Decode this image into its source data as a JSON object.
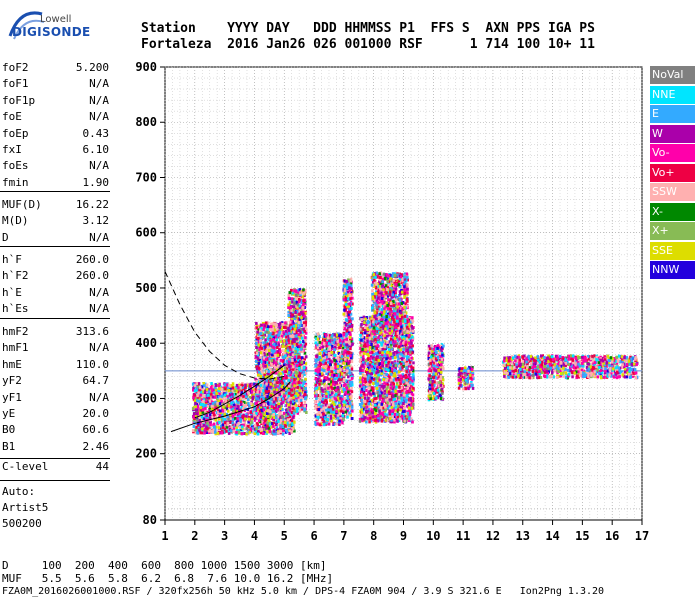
{
  "logo": {
    "line1": "Lowell",
    "line2": "DIGISONDE"
  },
  "header": {
    "line1": "Station    YYYY DAY   DDD HHMMSS P1  FFS S  AXN PPS IGA PS",
    "line2": "Fortaleza  2016 Jan26 026 001000 RSF      1 714 100 10+ 11"
  },
  "params_group1": [
    {
      "key": "foF2",
      "value": "5.200"
    },
    {
      "key": "foF1",
      "value": "N/A"
    },
    {
      "key": "foF1p",
      "value": "N/A"
    },
    {
      "key": "foE",
      "value": "N/A"
    },
    {
      "key": "foEp",
      "value": "0.43"
    },
    {
      "key": "fxI",
      "value": "6.10"
    },
    {
      "key": "foEs",
      "value": "N/A"
    },
    {
      "key": "fmin",
      "value": "1.90"
    }
  ],
  "params_group2": [
    {
      "key": "MUF(D)",
      "value": "16.22"
    },
    {
      "key": "M(D)",
      "value": "3.12"
    },
    {
      "key": "D",
      "value": "N/A"
    }
  ],
  "params_group3": [
    {
      "key": "h`F",
      "value": "260.0"
    },
    {
      "key": "h`F2",
      "value": "260.0"
    },
    {
      "key": "h`E",
      "value": "N/A"
    },
    {
      "key": "h`Es",
      "value": "N/A"
    }
  ],
  "params_group4": [
    {
      "key": "hmF2",
      "value": "313.6"
    },
    {
      "key": "hmF1",
      "value": "N/A"
    },
    {
      "key": "hmE",
      "value": "110.0"
    },
    {
      "key": "yF2",
      "value": "64.7"
    },
    {
      "key": "yF1",
      "value": "N/A"
    },
    {
      "key": "yE",
      "value": "20.0"
    },
    {
      "key": "B0",
      "value": "60.6"
    },
    {
      "key": "B1",
      "value": "2.46"
    }
  ],
  "clevel": {
    "key": "C-level",
    "value": "44"
  },
  "auto": {
    "line1": "Auto:",
    "line2": "Artist5",
    "line3": "500200"
  },
  "legend": [
    {
      "label": "NoVal",
      "color": "#808080"
    },
    {
      "label": "NNE",
      "color": "#00e5ff"
    },
    {
      "label": "E",
      "color": "#33aaff"
    },
    {
      "label": "W",
      "color": "#aa00aa"
    },
    {
      "label": "Vo-",
      "color": "#ff00aa"
    },
    {
      "label": "Vo+",
      "color": "#ee0044"
    },
    {
      "label": "SSW",
      "color": "#ffb0b0"
    },
    {
      "label": "X-",
      "color": "#008800"
    },
    {
      "label": "X+",
      "color": "#88bb55"
    },
    {
      "label": "SSE",
      "color": "#dddd00"
    },
    {
      "label": "NNW",
      "color": "#2200dd"
    }
  ],
  "bottom": {
    "d_row": "D     100  200  400  600  800 1000 1500 3000 [km]",
    "muf_row": "MUF   5.5  5.6  5.8  6.2  6.8  7.6 10.0 16.2 [MHz]",
    "file_row": "FZA0M_2016026001000.RSF / 320fx256h 50 kHz 5.0 km / DPS-4 FZA0M 904 / 3.9 S 321.6 E   Ion2Png 1.3.20"
  },
  "chart_data": {
    "type": "scatter",
    "title": "",
    "xlabel": "",
    "ylabel": "",
    "xlim": [
      1,
      17
    ],
    "ylim": [
      80,
      900
    ],
    "x_ticks": [
      1,
      2,
      3,
      4,
      5,
      6,
      7,
      8,
      9,
      10,
      11,
      12,
      13,
      14,
      15,
      16,
      17
    ],
    "y_ticks": [
      80,
      200,
      300,
      400,
      500,
      600,
      700,
      800,
      900
    ],
    "reference_height": 350,
    "clusters": [
      {
        "xmin": 1.9,
        "xmax": 5.3,
        "ymin": 238,
        "ymax": 330
      },
      {
        "xmin": 4.0,
        "xmax": 5.5,
        "ymin": 300,
        "ymax": 440
      },
      {
        "xmin": 5.1,
        "xmax": 5.7,
        "ymin": 275,
        "ymax": 500
      },
      {
        "xmin": 6.0,
        "xmax": 6.95,
        "ymin": 255,
        "ymax": 420
      },
      {
        "xmin": 6.95,
        "xmax": 7.25,
        "ymin": 265,
        "ymax": 520
      },
      {
        "xmin": 7.5,
        "xmax": 9.3,
        "ymin": 260,
        "ymax": 450
      },
      {
        "xmin": 7.9,
        "xmax": 9.1,
        "ymin": 420,
        "ymax": 530
      },
      {
        "xmin": 9.8,
        "xmax": 10.3,
        "ymin": 300,
        "ymax": 400
      },
      {
        "xmin": 10.8,
        "xmax": 11.3,
        "ymin": 320,
        "ymax": 360
      },
      {
        "xmin": 12.3,
        "xmax": 16.8,
        "ymin": 340,
        "ymax": 380
      }
    ],
    "profile_dashed": [
      [
        1.0,
        530
      ],
      [
        1.5,
        470
      ],
      [
        2.0,
        420
      ],
      [
        2.5,
        385
      ],
      [
        3.0,
        360
      ],
      [
        3.5,
        345
      ],
      [
        4.0,
        337
      ],
      [
        4.5,
        335
      ],
      [
        5.0,
        340
      ]
    ],
    "profile_solid_upper": [
      [
        2.0,
        265
      ],
      [
        2.5,
        275
      ],
      [
        3.0,
        290
      ],
      [
        3.5,
        305
      ],
      [
        4.0,
        322
      ],
      [
        4.5,
        340
      ],
      [
        4.8,
        352
      ],
      [
        5.0,
        360
      ]
    ],
    "profile_solid_lower": [
      [
        1.2,
        240
      ],
      [
        2.0,
        255
      ],
      [
        3.0,
        268
      ],
      [
        4.0,
        285
      ],
      [
        4.5,
        300
      ],
      [
        5.0,
        318
      ],
      [
        5.2,
        330
      ]
    ]
  }
}
